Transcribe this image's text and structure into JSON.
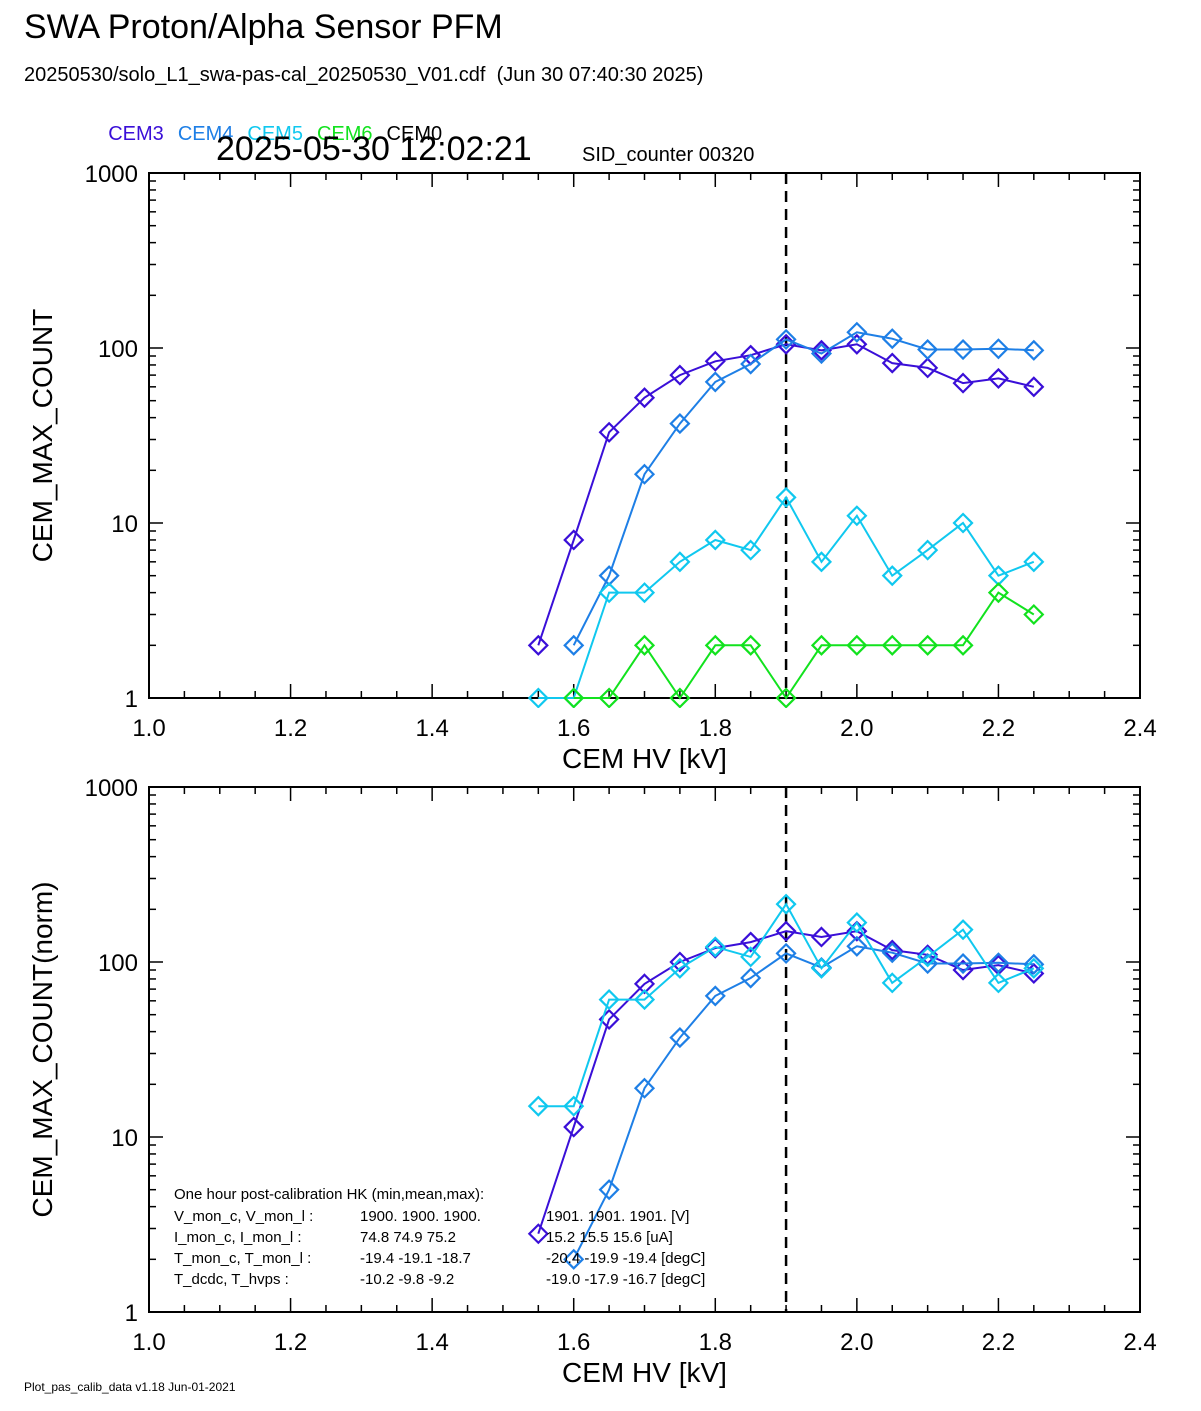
{
  "header": {
    "title": "SWA Proton/Alpha Sensor PFM",
    "file_line": "20250530/solo_L1_swa-pas-cal_20250530_V01.cdf  (Jun 30 07:40:30 2025)",
    "timestamp": "2025-05-30 12:02:21",
    "sid_label": "SID_counter 00320"
  },
  "legend": [
    {
      "label": "CEM3",
      "color": "#3a0fd8"
    },
    {
      "label": "CEM4",
      "color": "#1e7fe6"
    },
    {
      "label": "CEM5",
      "color": "#10c8ef"
    },
    {
      "label": "CEM6",
      "color": "#12e21e"
    },
    {
      "label": "CEM0",
      "color": "#000000"
    }
  ],
  "footer": "Plot_pas_calib_data v1.18 Jun-01-2021",
  "hk": {
    "title": "One hour post-calibration HK (min,mean,max):",
    "rows": [
      {
        "label": "V_mon_c, V_mon_l :",
        "a": "1900.  1900.  1900.",
        "b": "1901.  1901.  1901. [V]"
      },
      {
        "label": "I_mon_c,  I_mon_l :",
        "a": "74.8   74.9   75.2",
        "b": "15.2   15.5   15.6  [uA]"
      },
      {
        "label": "T_mon_c, T_mon_l :",
        "a": "-19.4  -19.1  -18.7",
        "b": "-20.4  -19.9  -19.4  [degC]"
      },
      {
        "label": "T_dcdc,    T_hvps :",
        "a": "-10.2   -9.8   -9.2",
        "b": "-19.0  -17.9  -16.7  [degC]"
      }
    ]
  },
  "chart_data": [
    {
      "type": "line",
      "title": "",
      "xlabel": "CEM HV [kV]",
      "ylabel": "CEM_MAX_COUNT",
      "xlim": [
        1.0,
        2.4
      ],
      "ylim": [
        1,
        1000
      ],
      "yscale": "log",
      "xticks": [
        "1.0",
        "1.2",
        "1.4",
        "1.6",
        "1.8",
        "2.0",
        "2.2",
        "2.4"
      ],
      "yticks": [
        "1",
        "10",
        "100",
        "1000"
      ],
      "vline_x": 1.9,
      "marker": "diamond",
      "series": [
        {
          "name": "CEM3",
          "color": "#3a0fd8",
          "x": [
            1.55,
            1.6,
            1.65,
            1.7,
            1.75,
            1.8,
            1.85,
            1.9,
            1.95,
            2.0,
            2.05,
            2.1,
            2.15,
            2.2,
            2.25
          ],
          "y": [
            2,
            8,
            33,
            52,
            70,
            84,
            91,
            105,
            97,
            105,
            82,
            77,
            63,
            67,
            60
          ]
        },
        {
          "name": "CEM4",
          "color": "#1e7fe6",
          "x": [
            1.6,
            1.65,
            1.7,
            1.75,
            1.8,
            1.85,
            1.9,
            1.95,
            2.0,
            2.05,
            2.1,
            2.15,
            2.2,
            2.25
          ],
          "y": [
            2,
            5,
            19,
            37,
            64,
            81,
            112,
            93,
            123,
            113,
            98,
            98,
            99,
            97
          ]
        },
        {
          "name": "CEM5",
          "color": "#10c8ef",
          "x": [
            1.55,
            1.6,
            1.65,
            1.7,
            1.75,
            1.8,
            1.85,
            1.9,
            1.95,
            2.0,
            2.05,
            2.1,
            2.15,
            2.2,
            2.25
          ],
          "y": [
            1,
            1,
            4,
            4,
            6,
            8,
            7,
            14,
            6,
            11,
            5,
            7,
            10,
            5,
            6
          ]
        },
        {
          "name": "CEM6",
          "color": "#12e21e",
          "x": [
            1.6,
            1.65,
            1.7,
            1.75,
            1.8,
            1.85,
            1.9,
            1.95,
            2.0,
            2.05,
            2.1,
            2.15,
            2.2,
            2.25
          ],
          "y": [
            1,
            1,
            2,
            1,
            2,
            2,
            1,
            2,
            2,
            2,
            2,
            2,
            4,
            3
          ]
        }
      ]
    },
    {
      "type": "line",
      "title": "",
      "xlabel": "CEM HV [kV]",
      "ylabel": "CEM_MAX_COUNT(norm)",
      "xlim": [
        1.0,
        2.4
      ],
      "ylim": [
        1,
        1000
      ],
      "yscale": "log",
      "xticks": [
        "1.0",
        "1.2",
        "1.4",
        "1.6",
        "1.8",
        "2.0",
        "2.2",
        "2.4"
      ],
      "yticks": [
        "1",
        "10",
        "100",
        "1000"
      ],
      "vline_x": 1.9,
      "marker": "diamond",
      "series": [
        {
          "name": "CEM3",
          "color": "#3a0fd8",
          "x": [
            1.55,
            1.6,
            1.65,
            1.7,
            1.75,
            1.8,
            1.85,
            1.9,
            1.95,
            2.0,
            2.05,
            2.1,
            2.15,
            2.2,
            2.25
          ],
          "y": [
            2.8,
            11.4,
            47,
            75,
            100,
            120,
            130,
            150,
            139,
            150,
            117,
            110,
            90,
            96,
            86
          ]
        },
        {
          "name": "CEM4",
          "color": "#1e7fe6",
          "x": [
            1.6,
            1.65,
            1.7,
            1.75,
            1.8,
            1.85,
            1.9,
            1.95,
            2.0,
            2.05,
            2.1,
            2.15,
            2.2,
            2.25
          ],
          "y": [
            2,
            5,
            19,
            37,
            64,
            81,
            112,
            93,
            123,
            113,
            98,
            98,
            99,
            97
          ]
        },
        {
          "name": "CEM5",
          "color": "#10c8ef",
          "x": [
            1.55,
            1.6,
            1.65,
            1.7,
            1.75,
            1.8,
            1.85,
            1.9,
            1.95,
            2.0,
            2.05,
            2.1,
            2.15,
            2.2,
            2.25
          ],
          "y": [
            15,
            15,
            61,
            61,
            92,
            122,
            107,
            214,
            92,
            168,
            76,
            107,
            153,
            76,
            92
          ]
        }
      ]
    }
  ]
}
